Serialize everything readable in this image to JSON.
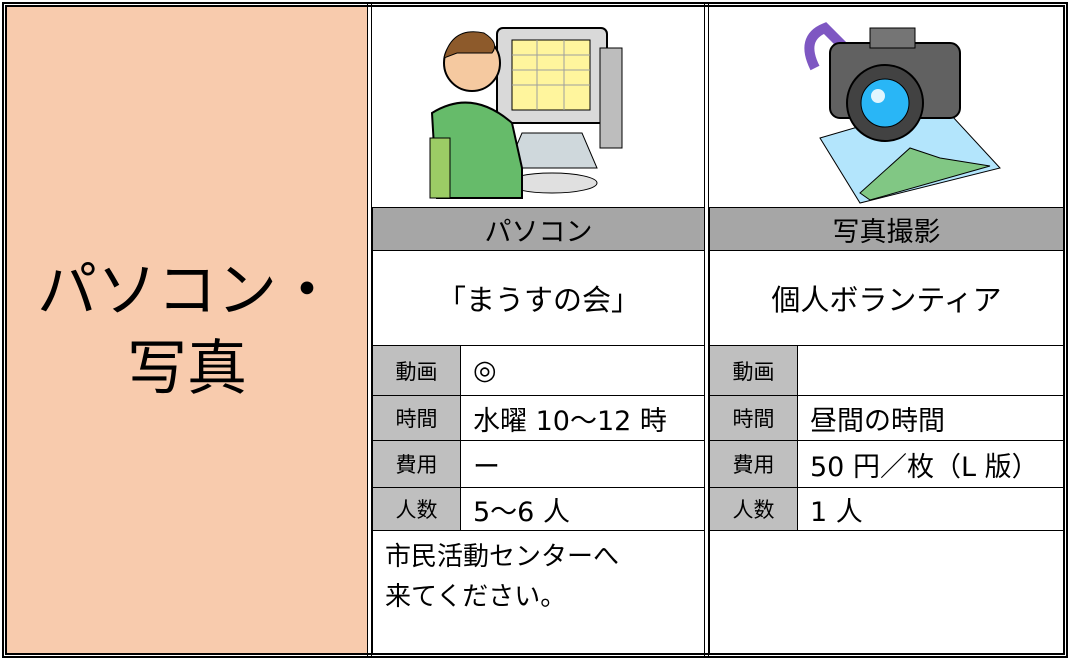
{
  "category": {
    "lines": [
      "パソコン・",
      "写真"
    ]
  },
  "cards": [
    {
      "name": "パソコン",
      "group": "「まうすの会」",
      "rows": [
        {
          "label": "動画",
          "value": "◎"
        },
        {
          "label": "時間",
          "value": "水曜 10～12 時"
        },
        {
          "label": "費用",
          "value": "ー"
        },
        {
          "label": "人数",
          "value": "5～6 人"
        }
      ],
      "note": [
        "市民活動センターへ",
        "来てください。"
      ]
    },
    {
      "name": "写真撮影",
      "group": "個人ボランティア",
      "rows": [
        {
          "label": "動画"
        },
        {
          "label": "時間",
          "value": "昼間の時間"
        },
        {
          "label": "費用",
          "value": "50 円／枚（L 版）"
        },
        {
          "label": "人数",
          "value": "1 人"
        }
      ]
    }
  ]
}
